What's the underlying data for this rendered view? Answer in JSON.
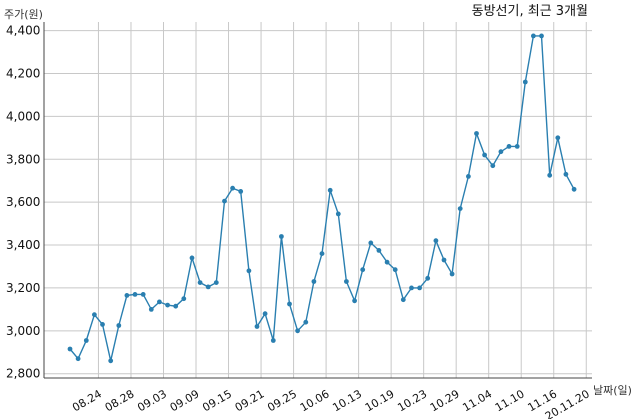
{
  "chart_data": {
    "type": "line",
    "title": "동방선기, 최근 3개월",
    "ylabel": "주가(원)",
    "xlabel": "날짜(일)",
    "ylim": [
      2780,
      4440
    ],
    "yticks": [
      2800,
      3000,
      3200,
      3400,
      3600,
      3800,
      4000,
      4200,
      4400
    ],
    "ytick_labels": [
      "2,800",
      "3,000",
      "3,200",
      "3,400",
      "3,600",
      "3,800",
      "4,000",
      "4,200",
      "4,400"
    ],
    "xtick_labels": [
      "08.24",
      "08.28",
      "09.03",
      "09.09",
      "09.15",
      "09.21",
      "09.25",
      "10.06",
      "10.13",
      "10.19",
      "10.23",
      "10.29",
      "11.04",
      "11.10",
      "11.16",
      "20.11.20"
    ],
    "xtick_positions": [
      3.5,
      7.5,
      11.5,
      15.5,
      19.5,
      23.5,
      27.5,
      31.5,
      35.5,
      39.5,
      43.5,
      47.5,
      51.5,
      55.5,
      59.5,
      63.5
    ],
    "grid": true,
    "line_color": "#2a7fb0",
    "series": [
      {
        "values": [
          2915,
          2870,
          2955,
          3075,
          3030,
          2860,
          3025,
          3165,
          3170,
          3170,
          3100,
          3135,
          3120,
          3115,
          3150,
          3340,
          3225,
          3205,
          3225,
          3605,
          3665,
          3650,
          3280,
          3020,
          3080,
          2955,
          3440,
          3125,
          3000,
          3040,
          3230,
          3360,
          3655,
          3545,
          3230,
          3140,
          3285,
          3410,
          3375,
          3320,
          3285,
          3145,
          3200,
          3200,
          3245,
          3420,
          3330,
          3265,
          3570,
          3720,
          3920,
          3820,
          3770,
          3835,
          3860,
          3860,
          4160,
          4375,
          4375,
          3725,
          3900,
          3730,
          3660
        ]
      }
    ]
  }
}
